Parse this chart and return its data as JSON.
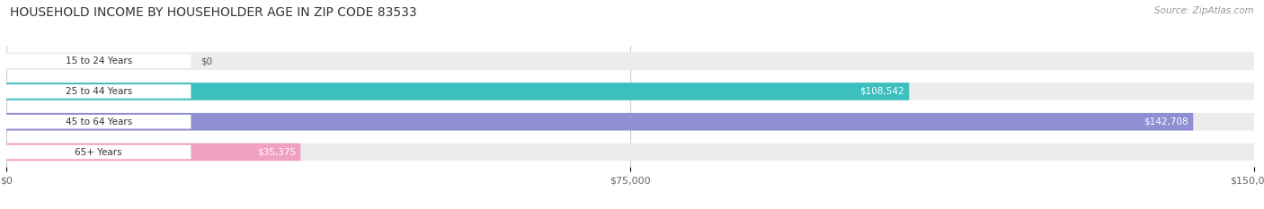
{
  "title": "HOUSEHOLD INCOME BY HOUSEHOLDER AGE IN ZIP CODE 83533",
  "source": "Source: ZipAtlas.com",
  "categories": [
    "15 to 24 Years",
    "25 to 44 Years",
    "45 to 64 Years",
    "65+ Years"
  ],
  "values": [
    0,
    108542,
    142708,
    35375
  ],
  "bar_colors": [
    "#c8a8d8",
    "#3cbfbe",
    "#8f8fd4",
    "#f0a0c0"
  ],
  "bar_bg_color": "#ececec",
  "label_colors": [
    "#333333",
    "#ffffff",
    "#ffffff",
    "#333333"
  ],
  "x_max": 150000,
  "x_ticks": [
    0,
    75000,
    150000
  ],
  "x_tick_labels": [
    "$0",
    "$75,000",
    "$150,000"
  ],
  "value_labels": [
    "$0",
    "$108,542",
    "$142,708",
    "$35,375"
  ],
  "bg_color": "#ffffff",
  "bar_height": 0.58,
  "figsize": [
    14.06,
    2.33
  ],
  "dpi": 100
}
